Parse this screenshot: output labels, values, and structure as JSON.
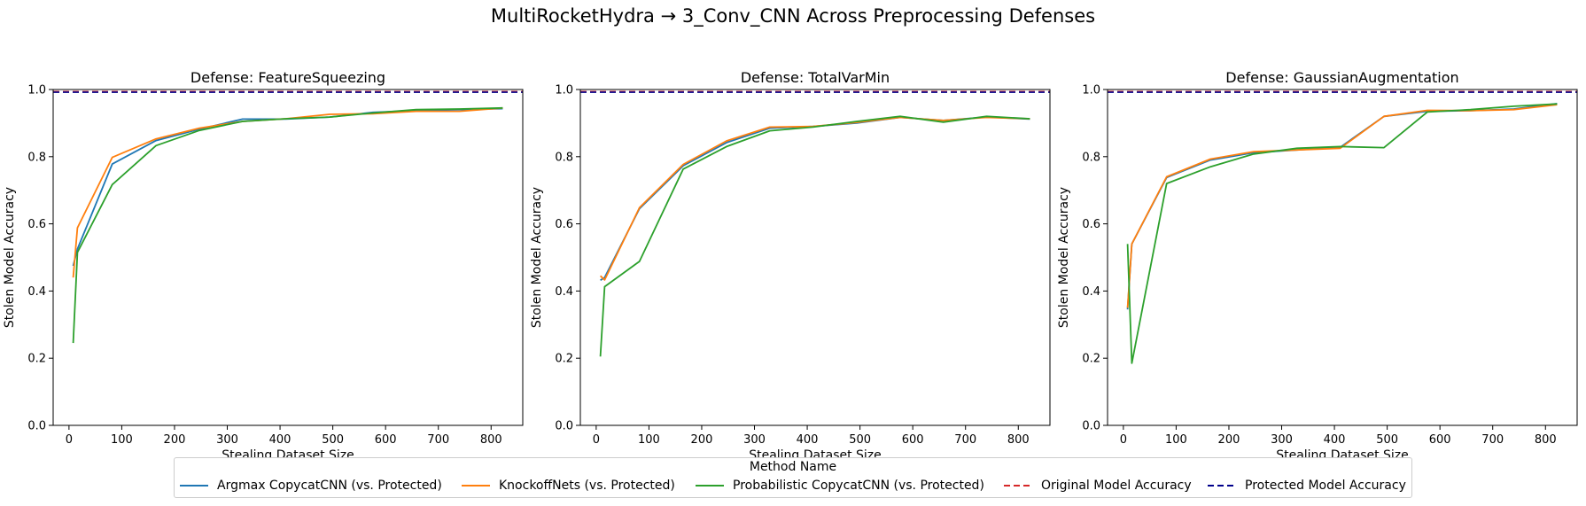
{
  "figure": {
    "suptitle": "MultiRocketHydra → 3_Conv_CNN Across Preprocessing Defenses"
  },
  "chart_data": [
    {
      "type": "line",
      "title": "Defense: FeatureSqueezing",
      "xlabel": "Stealing Dataset Size",
      "ylabel": "Stolen Model Accuracy",
      "xlim": [
        -30,
        860
      ],
      "ylim": [
        0.0,
        1.0
      ],
      "xticks": [
        0,
        100,
        200,
        300,
        400,
        500,
        600,
        700,
        800
      ],
      "yticks": [
        0.0,
        0.2,
        0.4,
        0.6,
        0.8,
        1.0
      ],
      "hlines": [
        {
          "name": "Original Model Accuracy",
          "y": 0.994,
          "color": "#d62728",
          "style": "dashed"
        },
        {
          "name": "Protected Model Accuracy",
          "y": 0.992,
          "color": "#00008b",
          "style": "dashed"
        }
      ],
      "series": [
        {
          "name": "Argmax CopycatCNN (vs. Protected)",
          "color": "#1f77b4",
          "x": [
            8,
            16,
            82,
            165,
            247,
            329,
            411,
            494,
            576,
            658,
            740,
            822
          ],
          "y": [
            0.475,
            0.525,
            0.778,
            0.848,
            0.882,
            0.912,
            0.912,
            0.918,
            0.932,
            0.937,
            0.94,
            0.943
          ]
        },
        {
          "name": "KnockoffNets (vs. Protected)",
          "color": "#ff7f0e",
          "x": [
            8,
            16,
            82,
            165,
            247,
            329,
            411,
            494,
            576,
            658,
            740,
            822
          ],
          "y": [
            0.44,
            0.588,
            0.798,
            0.853,
            0.885,
            0.905,
            0.913,
            0.926,
            0.928,
            0.935,
            0.935,
            0.945
          ]
        },
        {
          "name": "Probabilistic CopycatCNN (vs. Protected)",
          "color": "#2ca02c",
          "x": [
            8,
            16,
            82,
            165,
            247,
            329,
            411,
            494,
            576,
            658,
            740,
            822
          ],
          "y": [
            0.245,
            0.515,
            0.717,
            0.833,
            0.878,
            0.905,
            0.913,
            0.918,
            0.93,
            0.94,
            0.942,
            0.945
          ]
        }
      ]
    },
    {
      "type": "line",
      "title": "Defense: TotalVarMin",
      "xlabel": "Stealing Dataset Size",
      "ylabel": "Stolen Model Accuracy",
      "xlim": [
        -30,
        860
      ],
      "ylim": [
        0.0,
        1.0
      ],
      "xticks": [
        0,
        100,
        200,
        300,
        400,
        500,
        600,
        700,
        800
      ],
      "yticks": [
        0.0,
        0.2,
        0.4,
        0.6,
        0.8,
        1.0
      ],
      "hlines": [
        {
          "name": "Original Model Accuracy",
          "y": 0.994,
          "color": "#d62728",
          "style": "dashed"
        },
        {
          "name": "Protected Model Accuracy",
          "y": 0.992,
          "color": "#00008b",
          "style": "dashed"
        }
      ],
      "series": [
        {
          "name": "Argmax CopycatCNN (vs. Protected)",
          "color": "#1f77b4",
          "x": [
            8,
            16,
            82,
            165,
            247,
            329,
            411,
            494,
            576,
            658,
            740,
            822
          ],
          "y": [
            0.432,
            0.44,
            0.645,
            0.773,
            0.842,
            0.885,
            0.89,
            0.9,
            0.917,
            0.908,
            0.918,
            0.912
          ]
        },
        {
          "name": "KnockoffNets (vs. Protected)",
          "color": "#ff7f0e",
          "x": [
            8,
            16,
            82,
            165,
            247,
            329,
            411,
            494,
            576,
            658,
            740,
            822
          ],
          "y": [
            0.445,
            0.433,
            0.648,
            0.777,
            0.847,
            0.888,
            0.89,
            0.902,
            0.917,
            0.908,
            0.917,
            0.913
          ]
        },
        {
          "name": "Probabilistic CopycatCNN (vs. Protected)",
          "color": "#2ca02c",
          "x": [
            8,
            16,
            82,
            165,
            247,
            329,
            411,
            494,
            576,
            658,
            740,
            822
          ],
          "y": [
            0.205,
            0.413,
            0.488,
            0.763,
            0.83,
            0.877,
            0.888,
            0.905,
            0.92,
            0.903,
            0.92,
            0.913
          ]
        }
      ]
    },
    {
      "type": "line",
      "title": "Defense: GaussianAugmentation",
      "xlabel": "Stealing Dataset Size",
      "ylabel": "Stolen Model Accuracy",
      "xlim": [
        -30,
        860
      ],
      "ylim": [
        0.0,
        1.0
      ],
      "xticks": [
        0,
        100,
        200,
        300,
        400,
        500,
        600,
        700,
        800
      ],
      "yticks": [
        0.0,
        0.2,
        0.4,
        0.6,
        0.8,
        1.0
      ],
      "hlines": [
        {
          "name": "Original Model Accuracy",
          "y": 0.994,
          "color": "#d62728",
          "style": "dashed"
        },
        {
          "name": "Protected Model Accuracy",
          "y": 0.992,
          "color": "#00008b",
          "style": "dashed"
        }
      ],
      "series": [
        {
          "name": "Argmax CopycatCNN (vs. Protected)",
          "color": "#1f77b4",
          "x": [
            8,
            16,
            82,
            165,
            247,
            329,
            411,
            494,
            576,
            658,
            740,
            822
          ],
          "y": [
            0.345,
            0.54,
            0.738,
            0.79,
            0.812,
            0.82,
            0.828,
            0.92,
            0.935,
            0.937,
            0.942,
            0.958
          ]
        },
        {
          "name": "KnockoffNets (vs. Protected)",
          "color": "#ff7f0e",
          "x": [
            8,
            16,
            82,
            165,
            247,
            329,
            411,
            494,
            576,
            658,
            740,
            822
          ],
          "y": [
            0.35,
            0.54,
            0.74,
            0.793,
            0.815,
            0.82,
            0.825,
            0.92,
            0.938,
            0.937,
            0.94,
            0.955
          ]
        },
        {
          "name": "Probabilistic CopycatCNN (vs. Protected)",
          "color": "#2ca02c",
          "x": [
            8,
            16,
            82,
            165,
            247,
            329,
            411,
            494,
            576,
            658,
            740,
            822
          ],
          "y": [
            0.54,
            0.185,
            0.72,
            0.77,
            0.808,
            0.825,
            0.83,
            0.827,
            0.933,
            0.94,
            0.95,
            0.957
          ]
        }
      ]
    }
  ],
  "legend": {
    "title": "Method Name",
    "entries": [
      {
        "label": "Argmax CopycatCNN (vs. Protected)",
        "color": "#1f77b4",
        "style": "solid"
      },
      {
        "label": "KnockoffNets (vs. Protected)",
        "color": "#ff7f0e",
        "style": "solid"
      },
      {
        "label": "Probabilistic CopycatCNN (vs. Protected)",
        "color": "#2ca02c",
        "style": "solid"
      },
      {
        "label": "Original Model Accuracy",
        "color": "#d62728",
        "style": "dashed"
      },
      {
        "label": "Protected Model Accuracy",
        "color": "#00008b",
        "style": "dashed"
      }
    ]
  }
}
